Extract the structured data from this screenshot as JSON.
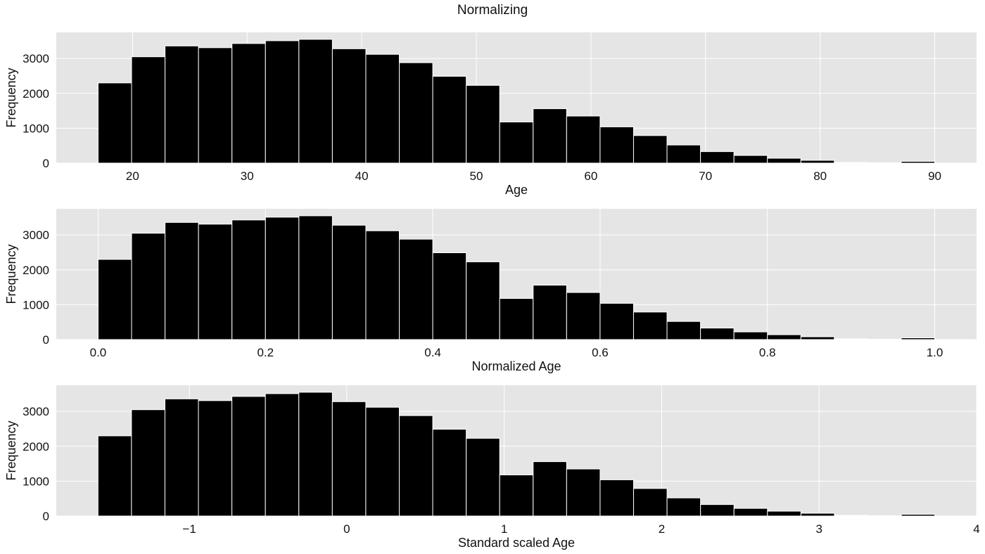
{
  "figure": {
    "suptitle": "Normalizing"
  },
  "chart_data": [
    {
      "type": "bar",
      "subtype": "histogram",
      "xlabel": "Age",
      "ylabel": "Frequency",
      "bin_start": 17,
      "bin_width": 2.92,
      "xlim": [
        13.35,
        93.65
      ],
      "xticks": [
        20,
        30,
        40,
        50,
        60,
        70,
        80,
        90
      ],
      "xtick_labels": [
        "20",
        "30",
        "40",
        "50",
        "60",
        "70",
        "80",
        "90"
      ],
      "ylim": [
        0,
        3750
      ],
      "yticks": [
        0,
        1000,
        2000,
        3000
      ],
      "ytick_labels": [
        "0",
        "1000",
        "2000",
        "3000"
      ],
      "values": [
        2300,
        3050,
        3360,
        3310,
        3430,
        3510,
        3550,
        3280,
        3120,
        2880,
        2490,
        2230,
        1180,
        1560,
        1350,
        1040,
        790,
        520,
        330,
        220,
        140,
        80,
        20,
        10,
        50
      ],
      "grid": true,
      "colors": {
        "bar": "#000000",
        "edge": "#ffffff",
        "background": "#e5e5e5",
        "grid": "#ffffff"
      }
    },
    {
      "type": "bar",
      "subtype": "histogram",
      "xlabel": "Normalized Age",
      "ylabel": "Frequency",
      "bin_start": 0.0,
      "bin_width": 0.04,
      "xlim": [
        -0.05,
        1.05
      ],
      "xticks": [
        0.0,
        0.2,
        0.4,
        0.6,
        0.8,
        1.0
      ],
      "xtick_labels": [
        "0.0",
        "0.2",
        "0.4",
        "0.6",
        "0.8",
        "1.0"
      ],
      "ylim": [
        0,
        3750
      ],
      "yticks": [
        0,
        1000,
        2000,
        3000
      ],
      "ytick_labels": [
        "0",
        "1000",
        "2000",
        "3000"
      ],
      "values": [
        2300,
        3050,
        3360,
        3310,
        3430,
        3510,
        3550,
        3280,
        3120,
        2880,
        2490,
        2230,
        1180,
        1560,
        1350,
        1040,
        790,
        520,
        330,
        220,
        140,
        80,
        20,
        10,
        50
      ],
      "grid": true,
      "colors": {
        "bar": "#000000",
        "edge": "#ffffff",
        "background": "#e5e5e5",
        "grid": "#ffffff"
      }
    },
    {
      "type": "bar",
      "subtype": "histogram",
      "xlabel": "Standard scaled Age",
      "ylabel": "Frequency",
      "bin_start": -1.58,
      "bin_width": 0.2126,
      "xlim": [
        -1.845,
        4.0
      ],
      "xticks": [
        -1,
        0,
        1,
        2,
        3,
        4
      ],
      "xtick_labels": [
        "−1",
        "0",
        "1",
        "2",
        "3",
        "4"
      ],
      "ylim": [
        0,
        3750
      ],
      "yticks": [
        0,
        1000,
        2000,
        3000
      ],
      "ytick_labels": [
        "0",
        "1000",
        "2000",
        "3000"
      ],
      "values": [
        2300,
        3050,
        3360,
        3310,
        3430,
        3510,
        3550,
        3280,
        3120,
        2880,
        2490,
        2230,
        1180,
        1560,
        1350,
        1040,
        790,
        520,
        330,
        220,
        140,
        80,
        20,
        10,
        50
      ],
      "grid": true,
      "colors": {
        "bar": "#000000",
        "edge": "#ffffff",
        "background": "#e5e5e5",
        "grid": "#ffffff"
      }
    }
  ]
}
